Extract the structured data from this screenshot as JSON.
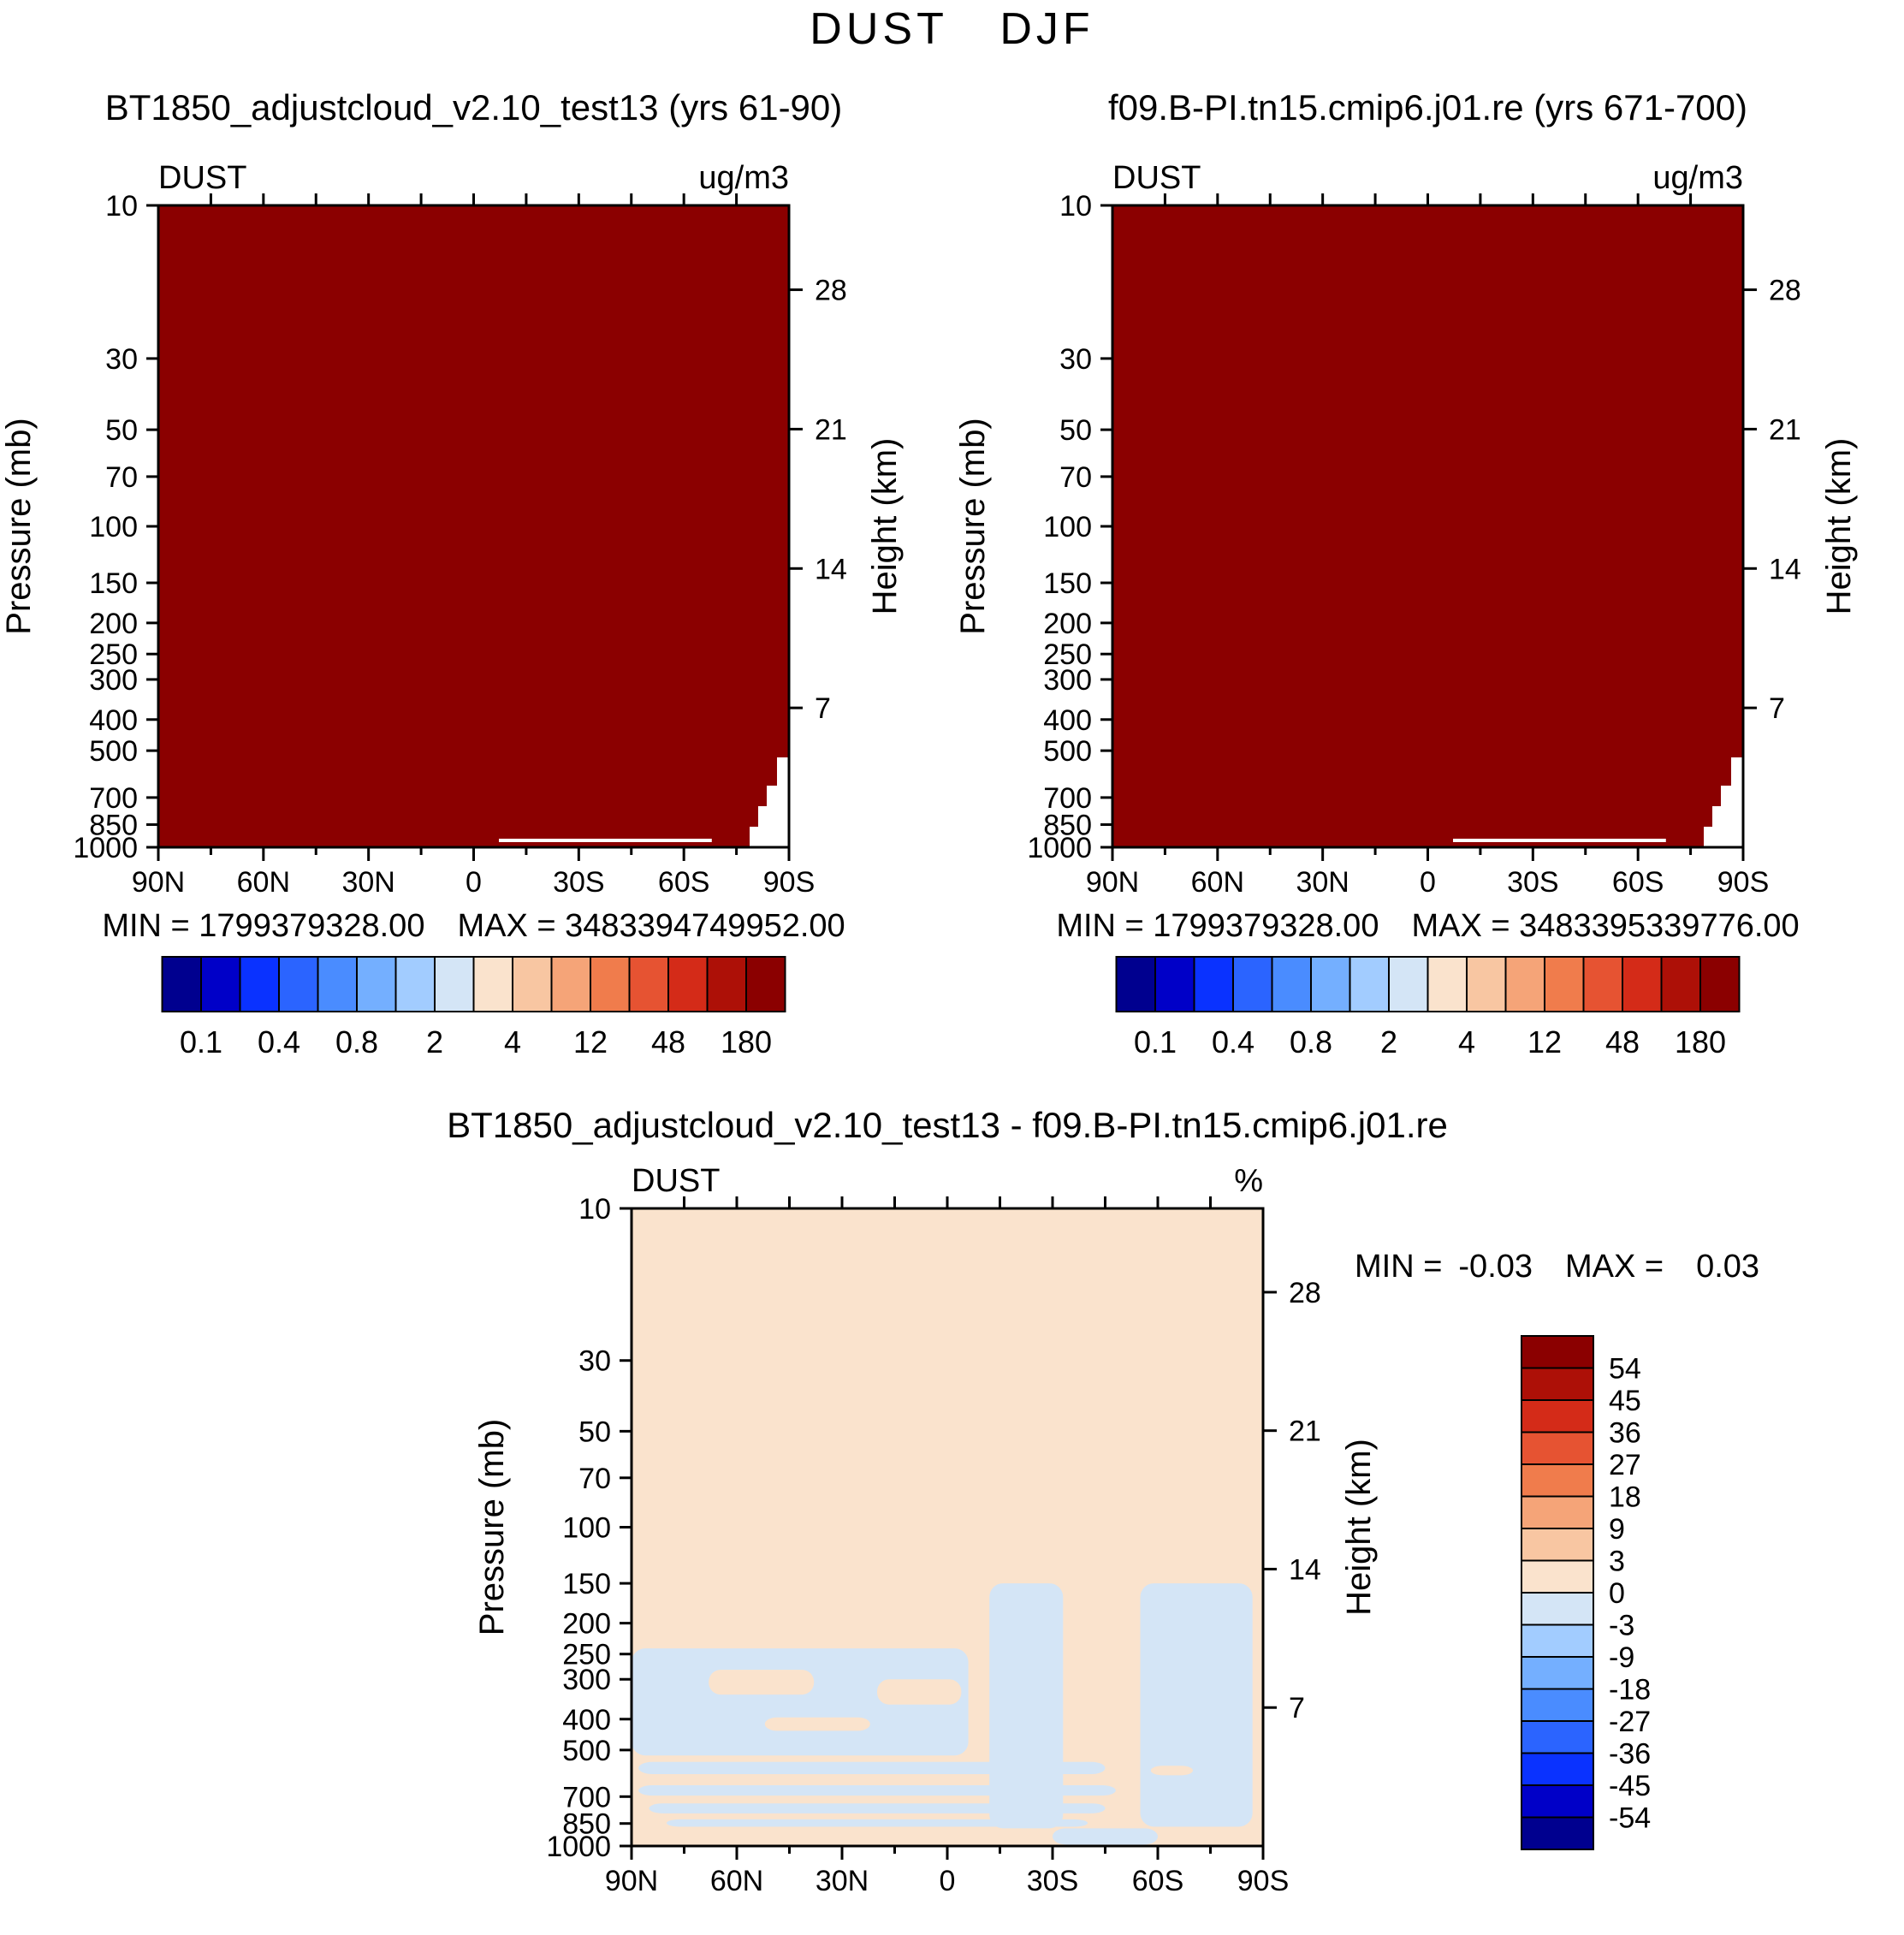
{
  "title": "DUST DJF",
  "colors": {
    "background": "#FFFFFF",
    "axis": "#000000",
    "field_max": "#8B0000",
    "diff_positive_bg": "#FAE3CD",
    "diff_negative": "#D4E5F6",
    "colorbar_palette": [
      "#00008F",
      "#0000C8",
      "#0A32FF",
      "#2B64FF",
      "#4A8CFF",
      "#74AFFF",
      "#A2CCFF",
      "#D4E5F6",
      "#FAE3CD",
      "#F8C6A2",
      "#F5A478",
      "#F07C4C",
      "#E65332",
      "#D42B18",
      "#AD1007",
      "#8B0000"
    ]
  },
  "chart_data": [
    {
      "id": "panel-top-left",
      "type": "heatmap",
      "title": "BT1850_adjustcloud_v2.10_test13 (yrs 61-90)",
      "field_label": "DUST",
      "units": "ug/m3",
      "x_axis": {
        "ticks": [
          "90N",
          "60N",
          "30N",
          "0",
          "30S",
          "60S",
          "90S"
        ],
        "minor_step_deg": 15
      },
      "y_axis": {
        "label": "Pressure (mb)",
        "scale": "log",
        "range": [
          10,
          1000
        ],
        "ticks": [
          10,
          30,
          50,
          70,
          100,
          150,
          200,
          250,
          300,
          400,
          500,
          700,
          850,
          1000
        ]
      },
      "y2_axis": {
        "label": "Height (km)",
        "ticks": [
          28,
          21,
          14,
          7
        ]
      },
      "stats": {
        "min_label": "MIN =",
        "min": "1799379328.00",
        "max_label": "MAX =",
        "max": "3483394749952.00"
      },
      "colorbar": {
        "orientation": "horizontal",
        "n_cells": 16,
        "labels": [
          "0.1",
          "0.4",
          "0.8",
          "2",
          "4",
          "12",
          "48",
          "180"
        ]
      },
      "field_description": "uniform saturated top bin (dark red, > 180 ug/m3) at all latitudes and pressures; white sub-surface wedge near 90S below ~650 mb and thin surface line near bottom from ~10S to 80S"
    },
    {
      "id": "panel-top-right",
      "type": "heatmap",
      "title": "f09.B-PI.tn15.cmip6.j01.re (yrs 671-700)",
      "field_label": "DUST",
      "units": "ug/m3",
      "x_axis": {
        "ticks": [
          "90N",
          "60N",
          "30N",
          "0",
          "30S",
          "60S",
          "90S"
        ],
        "minor_step_deg": 15
      },
      "y_axis": {
        "label": "Pressure (mb)",
        "scale": "log",
        "range": [
          10,
          1000
        ],
        "ticks": [
          10,
          30,
          50,
          70,
          100,
          150,
          200,
          250,
          300,
          400,
          500,
          700,
          850,
          1000
        ]
      },
      "y2_axis": {
        "label": "Height (km)",
        "ticks": [
          28,
          21,
          14,
          7
        ]
      },
      "stats": {
        "min_label": "MIN =",
        "min": "1799379328.00",
        "max_label": "MAX =",
        "max": "3483395339776.00"
      },
      "colorbar": {
        "orientation": "horizontal",
        "n_cells": 16,
        "labels": [
          "0.1",
          "0.4",
          "0.8",
          "2",
          "4",
          "12",
          "48",
          "180"
        ]
      },
      "field_description": "uniform saturated top bin (dark red, > 180 ug/m3) at all latitudes and pressures; white sub-surface wedge near 90S below ~650 mb and thin surface line near bottom from ~10S to 80S"
    },
    {
      "id": "panel-difference",
      "type": "heatmap",
      "title": "BT1850_adjustcloud_v2.10_test13 - f09.B-PI.tn15.cmip6.j01.re",
      "field_label": "DUST",
      "units": "%",
      "x_axis": {
        "ticks": [
          "90N",
          "60N",
          "30N",
          "0",
          "30S",
          "60S",
          "90S"
        ],
        "minor_step_deg": 15
      },
      "y_axis": {
        "label": "Pressure (mb)",
        "scale": "log",
        "range": [
          10,
          1000
        ],
        "ticks": [
          10,
          30,
          50,
          70,
          100,
          150,
          200,
          250,
          300,
          400,
          500,
          700,
          850,
          1000
        ]
      },
      "y2_axis": {
        "label": "Height (km)",
        "ticks": [
          28,
          21,
          14,
          7
        ]
      },
      "stats": {
        "min_label": "MIN =",
        "min": "-0.03",
        "max_label": "MAX =",
        "max": "0.03"
      },
      "colorbar": {
        "orientation": "vertical",
        "n_cells": 16,
        "labels": [
          "54",
          "45",
          "36",
          "27",
          "18",
          "9",
          "3",
          "0",
          "-3",
          "-9",
          "-18",
          "-27",
          "-36",
          "-45",
          "-54"
        ]
      },
      "background_bin": "0 to 3 percent (pale peach)",
      "negative_patches_lat_p": [
        {
          "lat": [
            90,
            -6
          ],
          "p": [
            240,
            520
          ]
        },
        {
          "lat": [
            -12,
            -33
          ],
          "p": [
            150,
            880
          ]
        },
        {
          "lat": [
            -55,
            -87
          ],
          "p": [
            150,
            870
          ]
        },
        {
          "lat": [
            88,
            -45
          ],
          "p": [
            545,
            595
          ]
        },
        {
          "lat": [
            88,
            -48
          ],
          "p": [
            645,
            695
          ]
        },
        {
          "lat": [
            85,
            -45
          ],
          "p": [
            735,
            790
          ]
        },
        {
          "lat": [
            80,
            -40
          ],
          "p": [
            825,
            870
          ]
        },
        {
          "lat": [
            -30,
            -60
          ],
          "p": [
            880,
            990
          ]
        }
      ],
      "positive_holes_lat_p": [
        {
          "lat": [
            68,
            38
          ],
          "p": [
            280,
            335
          ]
        },
        {
          "lat": [
            52,
            22
          ],
          "p": [
            395,
            435
          ]
        },
        {
          "lat": [
            20,
            -4
          ],
          "p": [
            300,
            360
          ]
        },
        {
          "lat": [
            -58,
            -70
          ],
          "p": [
            560,
            600
          ]
        }
      ]
    }
  ]
}
